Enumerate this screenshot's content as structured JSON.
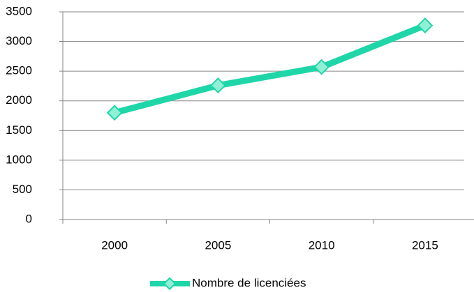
{
  "chart_data": {
    "type": "line",
    "categories": [
      "2000",
      "2005",
      "2010",
      "2015"
    ],
    "series": [
      {
        "name": "Nombre de licenciées",
        "color": "#1fd6a8",
        "values": [
          1800,
          2260,
          2570,
          3270
        ]
      }
    ],
    "ylim": [
      0,
      3500
    ],
    "yticks": [
      0,
      500,
      1000,
      1500,
      2000,
      2500,
      3000,
      3500
    ],
    "grid": true,
    "legend": "bottom"
  }
}
